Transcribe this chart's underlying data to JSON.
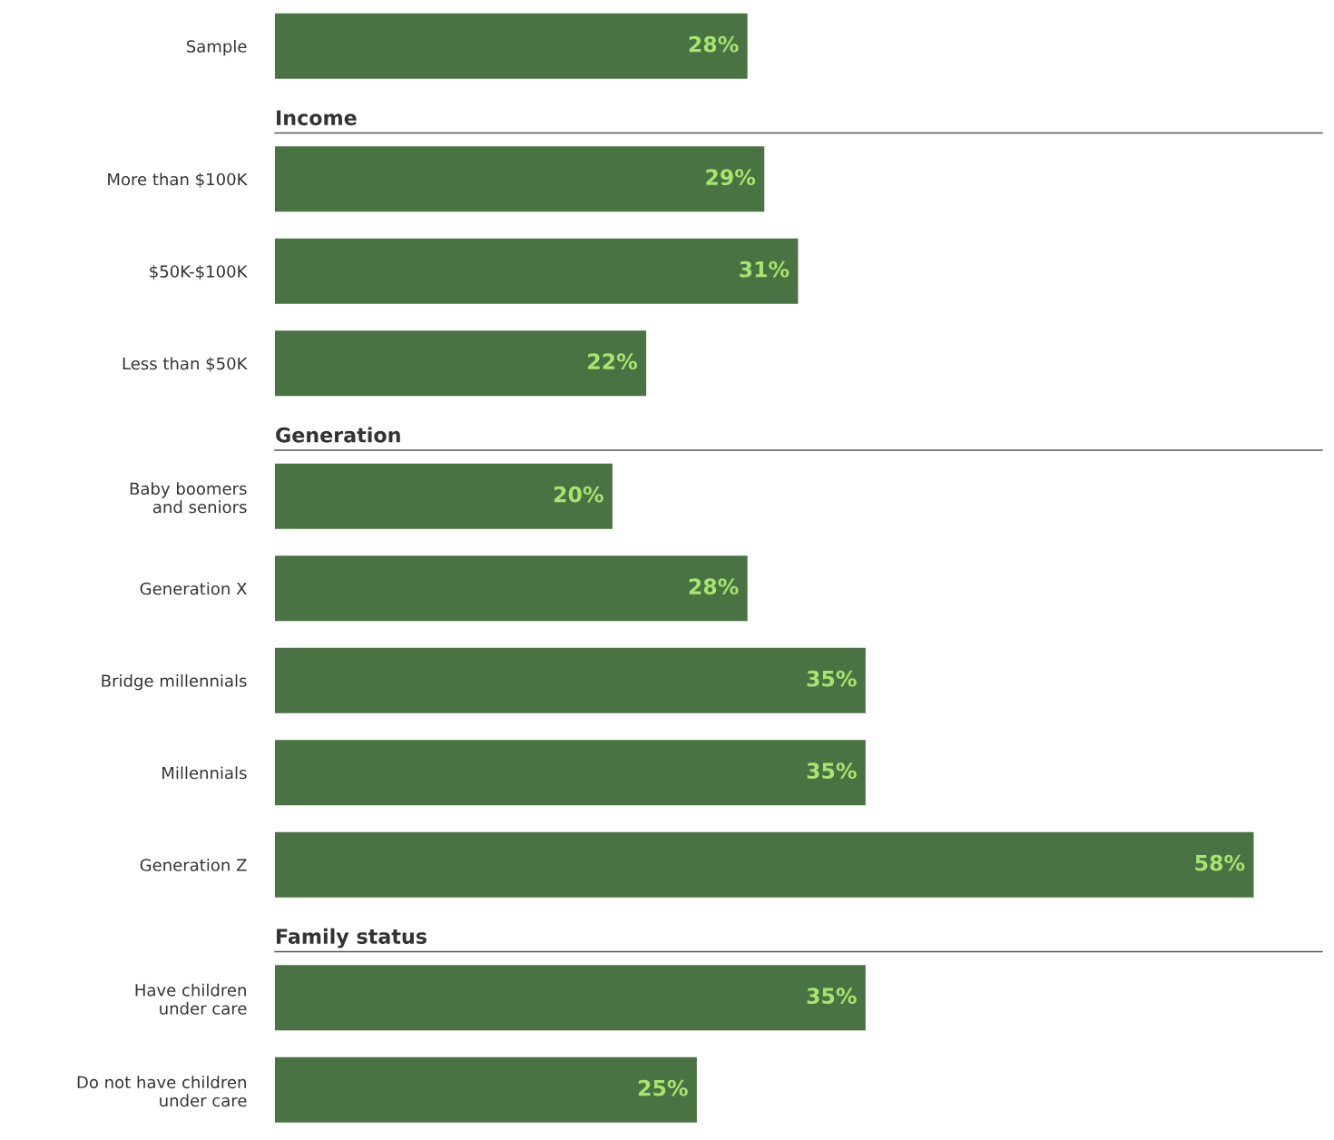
{
  "chart_data": {
    "type": "bar",
    "orientation": "horizontal",
    "categories": [
      "Sample",
      "More than $100K",
      "$50K-$100K",
      "Less than $50K",
      "Baby boomers\nand seniors",
      "Generation X",
      "Bridge millennials",
      "Millennials",
      "Generation Z",
      "Have children\nunder care",
      "Do not have children\nunder care"
    ],
    "values": [
      28,
      29,
      31,
      22,
      20,
      28,
      35,
      35,
      58,
      35,
      25
    ],
    "value_labels": [
      "28%",
      "29%",
      "31%",
      "22%",
      "20%",
      "28%",
      "35%",
      "35%",
      "58%",
      "35%",
      "25%"
    ],
    "color": "#4a7343",
    "annotations": [
      "Income",
      "Generation",
      "Family status"
    ]
  }
}
